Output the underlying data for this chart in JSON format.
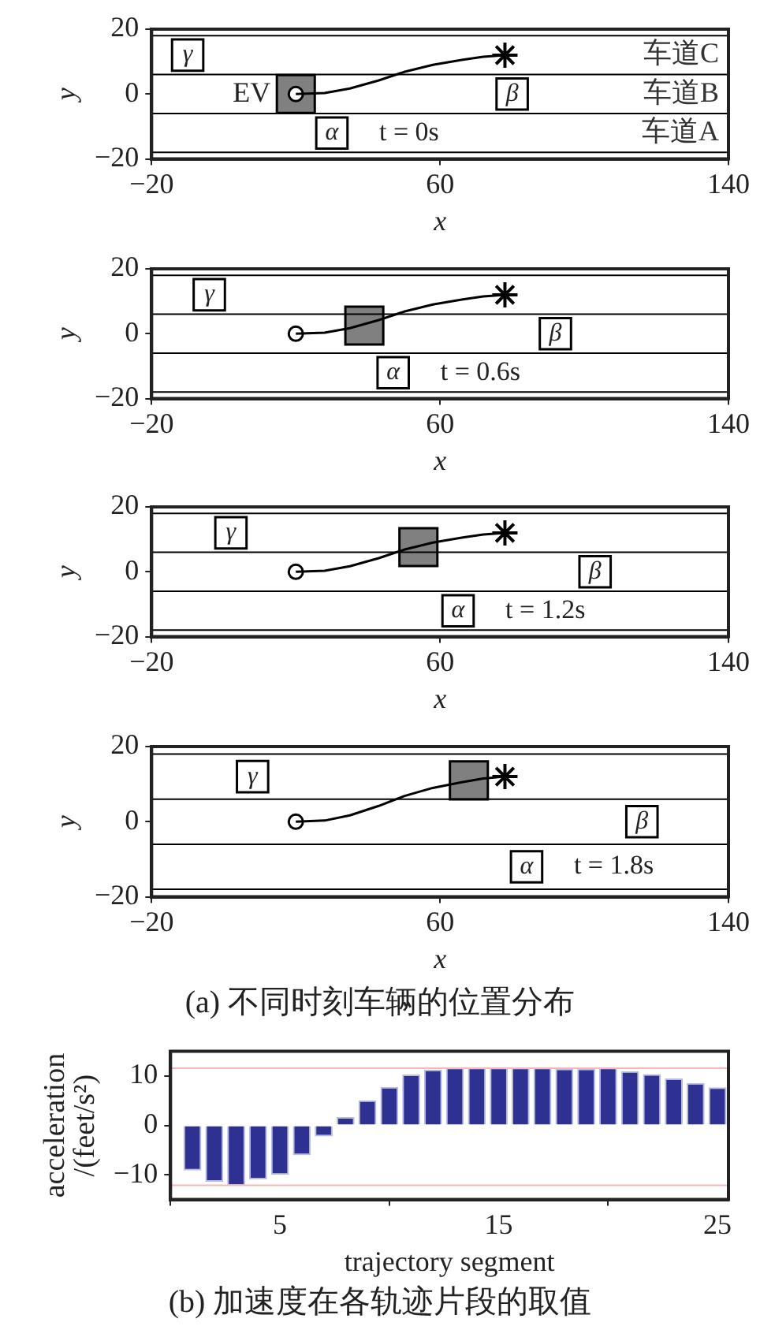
{
  "chart_data": [
    {
      "type": "line",
      "xlabel": "x",
      "ylabel": "y",
      "subtitle": "t = 0s",
      "xlim": [
        -20,
        140
      ],
      "xticks": [
        -20,
        60,
        140
      ],
      "ylim": [
        -20,
        20
      ],
      "yticks": [
        -20,
        0,
        20
      ],
      "ref_lines": [
        {
          "axis": "y",
          "value": 18,
          "label": "车道C"
        },
        {
          "axis": "y",
          "value": 6,
          "label": "车道B"
        },
        {
          "axis": "y",
          "value": -6,
          "label": "车道A"
        },
        {
          "axis": "y",
          "value": -18
        }
      ],
      "series": [
        {
          "type": "line",
          "color": "#000000",
          "marker": "none",
          "x": [
            20,
            28,
            35,
            43,
            50,
            58,
            66,
            72,
            78
          ],
          "values": [
            0,
            0.3,
            1.7,
            4.2,
            6.8,
            9,
            10.5,
            11.5,
            12
          ]
        },
        {
          "type": "scatter",
          "name": "EV",
          "color": "#808080",
          "marker": "square",
          "x": [
            20
          ],
          "values": [
            0
          ]
        },
        {
          "type": "scatter",
          "color": "#000000",
          "marker": "circle",
          "x": [
            20
          ],
          "values": [
            0
          ]
        },
        {
          "type": "scatter",
          "color": "#000000",
          "marker": "cross",
          "x": [
            78
          ],
          "values": [
            12
          ]
        },
        {
          "type": "scatter",
          "name": "γ",
          "color": "#000000",
          "marker": "square",
          "x": [
            -10
          ],
          "values": [
            12
          ]
        },
        {
          "type": "scatter",
          "name": "β",
          "color": "#000000",
          "marker": "square",
          "x": [
            80
          ],
          "values": [
            0
          ]
        },
        {
          "type": "scatter",
          "name": "α",
          "color": "#000000",
          "marker": "square",
          "x": [
            30
          ],
          "values": [
            -12
          ]
        }
      ]
    },
    {
      "type": "line",
      "xlabel": "x",
      "ylabel": "y",
      "subtitle": "t = 0.6s",
      "xlim": [
        -20,
        140
      ],
      "xticks": [
        -20,
        60,
        140
      ],
      "ylim": [
        -20,
        20
      ],
      "yticks": [
        -20,
        0,
        20
      ],
      "ref_lines": [
        {
          "axis": "y",
          "value": 18
        },
        {
          "axis": "y",
          "value": 6
        },
        {
          "axis": "y",
          "value": -6
        },
        {
          "axis": "y",
          "value": -18
        }
      ],
      "series": [
        {
          "type": "line",
          "color": "#000000",
          "marker": "none",
          "x": [
            20,
            28,
            35,
            43,
            50,
            58,
            66,
            72,
            78
          ],
          "values": [
            0,
            0.3,
            1.7,
            4.2,
            6.8,
            9,
            10.5,
            11.5,
            12
          ]
        },
        {
          "type": "scatter",
          "color": "#808080",
          "marker": "square",
          "x": [
            39
          ],
          "values": [
            2.5
          ]
        },
        {
          "type": "scatter",
          "color": "#000000",
          "marker": "circle",
          "x": [
            20
          ],
          "values": [
            0
          ]
        },
        {
          "type": "scatter",
          "color": "#000000",
          "marker": "cross",
          "x": [
            78
          ],
          "values": [
            12
          ]
        },
        {
          "type": "scatter",
          "name": "γ",
          "color": "#000000",
          "marker": "square",
          "x": [
            -4
          ],
          "values": [
            12
          ]
        },
        {
          "type": "scatter",
          "name": "β",
          "color": "#000000",
          "marker": "square",
          "x": [
            92
          ],
          "values": [
            0
          ]
        },
        {
          "type": "scatter",
          "name": "α",
          "color": "#000000",
          "marker": "square",
          "x": [
            47
          ],
          "values": [
            -12
          ]
        }
      ]
    },
    {
      "type": "line",
      "xlabel": "x",
      "ylabel": "y",
      "subtitle": "t = 1.2s",
      "xlim": [
        -20,
        140
      ],
      "xticks": [
        -20,
        60,
        140
      ],
      "ylim": [
        -20,
        20
      ],
      "yticks": [
        -20,
        0,
        20
      ],
      "ref_lines": [
        {
          "axis": "y",
          "value": 18
        },
        {
          "axis": "y",
          "value": 6
        },
        {
          "axis": "y",
          "value": -6
        },
        {
          "axis": "y",
          "value": -18
        }
      ],
      "series": [
        {
          "type": "line",
          "color": "#000000",
          "marker": "none",
          "x": [
            20,
            28,
            35,
            43,
            50,
            58,
            66,
            72,
            78
          ],
          "values": [
            0,
            0.3,
            1.7,
            4.2,
            6.8,
            9,
            10.5,
            11.5,
            12
          ]
        },
        {
          "type": "scatter",
          "color": "#808080",
          "marker": "square",
          "x": [
            54
          ],
          "values": [
            7.6
          ]
        },
        {
          "type": "scatter",
          "color": "#000000",
          "marker": "circle",
          "x": [
            20
          ],
          "values": [
            0
          ]
        },
        {
          "type": "scatter",
          "color": "#000000",
          "marker": "cross",
          "x": [
            78
          ],
          "values": [
            12
          ]
        },
        {
          "type": "scatter",
          "name": "γ",
          "color": "#000000",
          "marker": "square",
          "x": [
            2
          ],
          "values": [
            12
          ]
        },
        {
          "type": "scatter",
          "name": "β",
          "color": "#000000",
          "marker": "square",
          "x": [
            103
          ],
          "values": [
            0
          ]
        },
        {
          "type": "scatter",
          "name": "α",
          "color": "#000000",
          "marker": "square",
          "x": [
            65
          ],
          "values": [
            -12
          ]
        }
      ]
    },
    {
      "type": "line",
      "xlabel": "x",
      "ylabel": "y",
      "subtitle": "t = 1.8s",
      "xlim": [
        -20,
        140
      ],
      "xticks": [
        -20,
        60,
        140
      ],
      "ylim": [
        -20,
        20
      ],
      "yticks": [
        -20,
        0,
        20
      ],
      "ref_lines": [
        {
          "axis": "y",
          "value": 18
        },
        {
          "axis": "y",
          "value": 6
        },
        {
          "axis": "y",
          "value": -6
        },
        {
          "axis": "y",
          "value": -18
        }
      ],
      "series": [
        {
          "type": "line",
          "color": "#000000",
          "marker": "none",
          "x": [
            20,
            28,
            35,
            43,
            50,
            58,
            66,
            72,
            78
          ],
          "values": [
            0,
            0.3,
            1.7,
            4.2,
            6.8,
            9,
            10.5,
            11.5,
            12
          ]
        },
        {
          "type": "scatter",
          "color": "#808080",
          "marker": "square",
          "x": [
            68
          ],
          "values": [
            11
          ]
        },
        {
          "type": "scatter",
          "color": "#000000",
          "marker": "circle",
          "x": [
            20
          ],
          "values": [
            0
          ]
        },
        {
          "type": "scatter",
          "color": "#000000",
          "marker": "cross",
          "x": [
            78
          ],
          "values": [
            12
          ]
        },
        {
          "type": "scatter",
          "name": "γ",
          "color": "#000000",
          "marker": "square",
          "x": [
            8
          ],
          "values": [
            12
          ]
        },
        {
          "type": "scatter",
          "name": "β",
          "color": "#000000",
          "marker": "square",
          "x": [
            116
          ],
          "values": [
            0
          ]
        },
        {
          "type": "scatter",
          "name": "α",
          "color": "#000000",
          "marker": "square",
          "x": [
            84
          ],
          "values": [
            -12
          ]
        }
      ],
      "annotations": [
        "(a)  不同时刻车辆的位置分布"
      ]
    },
    {
      "type": "bar",
      "xlabel": "trajectory segment",
      "ylabel": "acceleration /(feet/s²)",
      "color": "#2e3192",
      "xlim": [
        0,
        25.5
      ],
      "xticks": [
        5,
        15,
        25
      ],
      "ylim": [
        -15,
        15
      ],
      "yticks": [
        -10,
        0,
        10
      ],
      "x": [
        1,
        2,
        3,
        4,
        5,
        6,
        7,
        8,
        9,
        10,
        11,
        12,
        13,
        14,
        15,
        16,
        17,
        18,
        19,
        20,
        21,
        22,
        23,
        24,
        25
      ],
      "values": [
        -9.1,
        -11.4,
        -12.2,
        -10.9,
        -10,
        -6,
        -2.2,
        1.7,
        5.1,
        7.8,
        10.3,
        11.3,
        11.7,
        11.7,
        11.7,
        11.7,
        11.7,
        11.5,
        11.5,
        11.7,
        11,
        10.4,
        9.5,
        8.6,
        7.7
      ],
      "ref_lines": [
        {
          "axis": "y",
          "value": 11.6,
          "color": "#f4b8b8"
        },
        {
          "axis": "y",
          "value": -12.1,
          "color": "#f4b8b8"
        }
      ],
      "annotations": [
        "(b)  加速度在各轨迹片段的取值"
      ]
    }
  ]
}
